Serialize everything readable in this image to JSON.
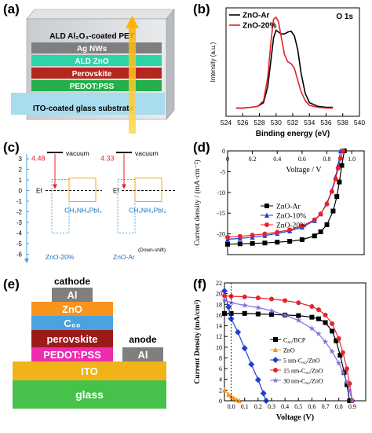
{
  "panels": {
    "a": {
      "label": "(a)",
      "layers": [
        {
          "text": "ALD Al₂O₃-coated PET",
          "color": "#d9d9d9",
          "text_color": "#000000"
        },
        {
          "text": "Ag NWs",
          "color": "#7f7f7f",
          "text_color": "#ffffff"
        },
        {
          "text": "ALD ZnO",
          "color": "#2dd4a8",
          "text_color": "#ffffff"
        },
        {
          "text": "Perovskite",
          "color": "#b5271e",
          "text_color": "#ffffff"
        },
        {
          "text": "PEDOT:PSS",
          "color": "#22b04a",
          "text_color": "#ffffff"
        },
        {
          "text": "ITO-coated glass substrate",
          "color": "#a9dcef",
          "text_color": "#000000"
        }
      ]
    },
    "b": {
      "label": "(b)",
      "annotation": "O 1s",
      "legend": [
        "ZnO-Ar",
        "ZnO-20%"
      ]
    },
    "c": {
      "label": "(c)",
      "vacuum_label": "vacuum",
      "ef_label": "Ef",
      "values": [
        "4.48",
        "4.33"
      ],
      "material": "CH₃NH₃PbI₃",
      "film_labels": [
        "ZnO-20%",
        "ZnO-Ar"
      ],
      "downshift": "(Down-shift)",
      "yticks": [
        "3",
        "2",
        "1",
        "0",
        "-1",
        "-2",
        "-3",
        "-4",
        "-5",
        "-6"
      ]
    },
    "d": {
      "label": "(d)",
      "xlabel": "Voltage / V",
      "ylabel": "Current density / (mA·cm⁻²)",
      "legend": [
        "ZnO-Ar",
        "ZnO-10%",
        "ZnO-20%"
      ]
    },
    "e": {
      "label": "(e)",
      "cathode_label": "cathode",
      "anode_label": "anode",
      "anode_al": "Al",
      "stack": [
        {
          "text": "Al",
          "color": "#7f7f7f"
        },
        {
          "text": "ZnO",
          "color": "#f7941d"
        },
        {
          "text": "C₆₀",
          "color": "#4aa3df"
        },
        {
          "text": "perovskite",
          "color": "#9b1b1b"
        },
        {
          "text": "PEDOT:PSS",
          "color": "#ee2cb0"
        },
        {
          "text": "ITO",
          "color": "#f2b318"
        },
        {
          "text": "glass",
          "color": "#46c24a"
        }
      ]
    },
    "f": {
      "label": "(f)",
      "xlabel": "Voltage (V)",
      "ylabel": "Current Density (mA/cm²)",
      "legend": [
        "C₆₀/BCP",
        "ZnO",
        "5 nm-C₆₀/ZnO",
        "15 nm-C₆₀/ZnO",
        "30 nm-C₆₀/ZnO"
      ]
    }
  },
  "chart_data": [
    {
      "panel": "b",
      "type": "line",
      "xlabel": "Binding energy (eV)",
      "ylabel": "Intensity (a.u.)",
      "xlim": [
        524,
        540
      ],
      "xticks": [
        524,
        526,
        528,
        530,
        532,
        534,
        536,
        538,
        540
      ],
      "legend_position": "top-left",
      "series": [
        {
          "name": "ZnO-Ar",
          "color": "#000000",
          "x": [
            525.2,
            526,
            527,
            527.8,
            528.5,
            529,
            529.4,
            529.7,
            530,
            530.3,
            530.6,
            531,
            531.4,
            531.8,
            532.2,
            532.6,
            533,
            533.5,
            534,
            535,
            536,
            536.8
          ],
          "y": [
            0.02,
            0.02,
            0.03,
            0.04,
            0.08,
            0.25,
            0.55,
            0.78,
            0.86,
            0.84,
            0.82,
            0.82,
            0.84,
            0.85,
            0.8,
            0.65,
            0.4,
            0.18,
            0.08,
            0.04,
            0.03,
            0.03
          ]
        },
        {
          "name": "ZnO-20%",
          "color": "#e8232a",
          "x": [
            525.2,
            526,
            527,
            527.8,
            528.5,
            529,
            529.4,
            529.7,
            530,
            530.3,
            530.6,
            531,
            531.4,
            531.8,
            532.2,
            532.6,
            533,
            533.5,
            534,
            535,
            536,
            536.8
          ],
          "y": [
            0.02,
            0.02,
            0.03,
            0.04,
            0.1,
            0.35,
            0.75,
            0.98,
            1.0,
            0.95,
            0.8,
            0.6,
            0.52,
            0.5,
            0.45,
            0.32,
            0.2,
            0.1,
            0.05,
            0.03,
            0.02,
            0.02
          ]
        }
      ]
    },
    {
      "panel": "d",
      "type": "line",
      "xlabel": "Voltage / V",
      "ylabel": "Current density / (mA·cm⁻²)",
      "xlim": [
        0,
        1.1
      ],
      "ylim": [
        -25,
        0
      ],
      "xticks": [
        0,
        0.2,
        0.4,
        0.6,
        0.8,
        1.0
      ],
      "xtick_labels": [
        "0",
        "0.2",
        "0.4",
        "0.6",
        "0.8",
        "1.0"
      ],
      "yticks": [
        0,
        -5,
        -10,
        -15,
        -20
      ],
      "legend_position": "center-right",
      "series": [
        {
          "name": "ZnO-Ar",
          "color": "#000000",
          "marker": "square",
          "x": [
            0,
            0.1,
            0.2,
            0.3,
            0.4,
            0.5,
            0.6,
            0.7,
            0.75,
            0.8,
            0.85,
            0.88,
            0.9,
            0.92,
            0.94
          ],
          "y": [
            -22.5,
            -22.4,
            -22.3,
            -22.2,
            -22.0,
            -21.8,
            -21.4,
            -20.5,
            -19.5,
            -17.8,
            -14.5,
            -11,
            -7.5,
            -3.5,
            0
          ]
        },
        {
          "name": "ZnO-10%",
          "color": "#1f3fd1",
          "marker": "triangle",
          "x": [
            0,
            0.1,
            0.2,
            0.3,
            0.4,
            0.5,
            0.6,
            0.7,
            0.75,
            0.8,
            0.84,
            0.87,
            0.89,
            0.91
          ],
          "y": [
            -21.3,
            -21.1,
            -20.8,
            -20.4,
            -19.9,
            -19.3,
            -18.4,
            -16.8,
            -15.2,
            -12.6,
            -9.5,
            -6.2,
            -3.5,
            0
          ]
        },
        {
          "name": "ZnO-20%",
          "color": "#e8232a",
          "marker": "circle",
          "x": [
            0,
            0.1,
            0.2,
            0.3,
            0.4,
            0.5,
            0.6,
            0.7,
            0.75,
            0.8,
            0.84,
            0.87,
            0.89,
            0.91,
            0.93
          ],
          "y": [
            -20.8,
            -20.6,
            -20.3,
            -20.0,
            -19.6,
            -19.0,
            -18.1,
            -16.6,
            -15.2,
            -12.8,
            -9.8,
            -6.8,
            -4.2,
            -1.8,
            0
          ]
        }
      ]
    },
    {
      "panel": "f",
      "type": "line",
      "xlabel": "Voltage (V)",
      "ylabel": "Current Density (mA/cm²)",
      "xlim": [
        -0.05,
        1.0
      ],
      "ylim": [
        0,
        22
      ],
      "xticks": [
        0.0,
        0.1,
        0.2,
        0.3,
        0.4,
        0.5,
        0.6,
        0.7,
        0.8,
        0.9
      ],
      "xtick_labels": [
        "0.0",
        "0.1",
        "0.2",
        "0.3",
        "0.4",
        "0.5",
        "0.6",
        "0.7",
        "0.8",
        "0.9"
      ],
      "yticks": [
        0,
        2,
        4,
        6,
        8,
        10,
        12,
        14,
        16,
        18,
        20,
        22
      ],
      "legend_position": "center-right",
      "series": [
        {
          "name": "C₆₀/BCP",
          "color": "#000000",
          "marker": "square",
          "x": [
            -0.05,
            0,
            0.1,
            0.2,
            0.3,
            0.4,
            0.5,
            0.6,
            0.65,
            0.7,
            0.75,
            0.78,
            0.81,
            0.84,
            0.86,
            0.88
          ],
          "y": [
            16.3,
            16.3,
            16.3,
            16.2,
            16.1,
            16.0,
            15.9,
            15.6,
            15.3,
            14.6,
            13.0,
            11.2,
            8.5,
            5.3,
            3.0,
            0
          ]
        },
        {
          "name": "ZnO",
          "color": "#f7941d",
          "marker": "triangle",
          "x": [
            -0.05,
            -0.02,
            0.0,
            0.02,
            0.04,
            0.06
          ],
          "y": [
            2.0,
            1.2,
            0.9,
            0.5,
            0.2,
            0
          ]
        },
        {
          "name": "5 nm-C₆₀/ZnO",
          "color": "#1f3fd1",
          "marker": "diamond",
          "x": [
            -0.05,
            -0.02,
            0.0,
            0.05,
            0.1,
            0.15,
            0.2,
            0.24,
            0.26
          ],
          "y": [
            20.5,
            17.5,
            15.3,
            12.8,
            9.8,
            6.8,
            3.9,
            1.4,
            0
          ]
        },
        {
          "name": "15 nm-C₆₀/ZnO",
          "color": "#e8232a",
          "marker": "circle",
          "x": [
            -0.05,
            0,
            0.1,
            0.2,
            0.3,
            0.4,
            0.5,
            0.6,
            0.65,
            0.7,
            0.75,
            0.8,
            0.83,
            0.86,
            0.88,
            0.9
          ],
          "y": [
            19.6,
            19.5,
            19.4,
            19.2,
            19.0,
            18.7,
            18.3,
            17.6,
            17.0,
            16.0,
            14.4,
            11.6,
            9.0,
            6.0,
            3.2,
            0
          ]
        },
        {
          "name": "30 nm-C₆₀/ZnO",
          "color": "#8a6fd8",
          "marker": "star",
          "x": [
            -0.05,
            0,
            0.1,
            0.2,
            0.3,
            0.4,
            0.5,
            0.6,
            0.65,
            0.7,
            0.75,
            0.8,
            0.83,
            0.86,
            0.88,
            0.9
          ],
          "y": [
            18.8,
            18.3,
            17.8,
            17.4,
            16.8,
            16.0,
            15.0,
            13.5,
            12.5,
            11.0,
            9.2,
            7.0,
            5.3,
            3.5,
            1.8,
            0
          ]
        }
      ]
    }
  ]
}
